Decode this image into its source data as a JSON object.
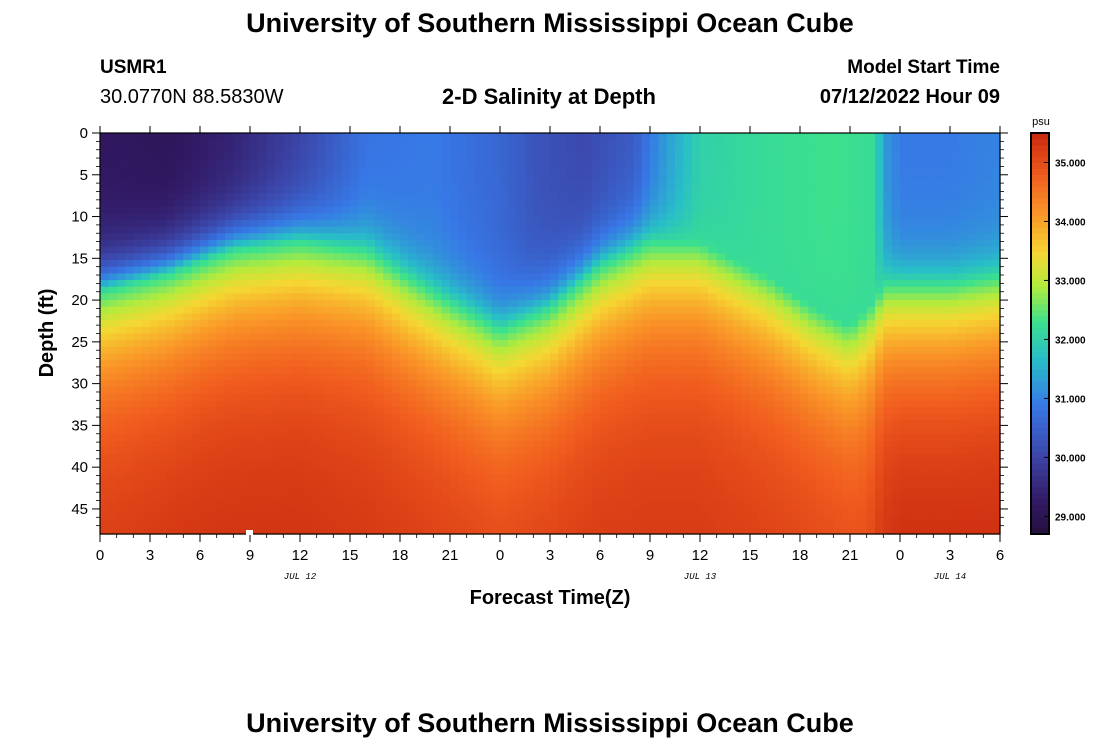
{
  "header": {
    "title": "University of Southern Mississippi Ocean Cube",
    "station": "USMR1",
    "coords": "30.0770N  88.5830W",
    "subtitle": "2-D Salinity at Depth",
    "model_start_label": "Model Start Time",
    "model_start_value": "07/12/2022 Hour 09"
  },
  "footer": {
    "title": "University of Southern Mississippi Ocean Cube"
  },
  "chart_data": {
    "type": "heatmap",
    "title": "2-D Salinity at Depth",
    "xlabel": "Forecast Time(Z)",
    "ylabel": "Depth (ft)",
    "x_unit": "hours",
    "xlim": [
      0,
      54
    ],
    "ylim": [
      0,
      48
    ],
    "x_ticks": [
      {
        "hour": 0,
        "label": "0"
      },
      {
        "hour": 3,
        "label": "3"
      },
      {
        "hour": 6,
        "label": "6"
      },
      {
        "hour": 9,
        "label": "9"
      },
      {
        "hour": 12,
        "label": "12"
      },
      {
        "hour": 15,
        "label": "15"
      },
      {
        "hour": 18,
        "label": "18"
      },
      {
        "hour": 21,
        "label": "21"
      },
      {
        "hour": 24,
        "label": "0"
      },
      {
        "hour": 27,
        "label": "3"
      },
      {
        "hour": 30,
        "label": "6"
      },
      {
        "hour": 33,
        "label": "9"
      },
      {
        "hour": 36,
        "label": "12"
      },
      {
        "hour": 39,
        "label": "15"
      },
      {
        "hour": 42,
        "label": "18"
      },
      {
        "hour": 45,
        "label": "21"
      },
      {
        "hour": 48,
        "label": "0"
      },
      {
        "hour": 51,
        "label": "3"
      },
      {
        "hour": 54,
        "label": "6"
      }
    ],
    "date_labels": [
      {
        "hour": 12,
        "label": "JUL 12"
      },
      {
        "hour": 36,
        "label": "JUL 13"
      },
      {
        "hour": 51,
        "label": "JUL 14"
      }
    ],
    "y_ticks": [
      0,
      5,
      10,
      15,
      20,
      25,
      30,
      35,
      40,
      45
    ],
    "colorbar": {
      "unit": "psu",
      "min": 28.7,
      "max": 35.5,
      "ticks": [
        "29.000",
        "30.000",
        "31.000",
        "32.000",
        "33.000",
        "34.000",
        "35.000"
      ]
    },
    "halocline_depth_ft": {
      "hours": [
        0,
        4,
        8,
        12,
        16,
        20,
        24,
        27,
        30,
        33,
        36,
        40,
        43,
        45,
        46.5,
        47,
        48,
        51,
        54
      ],
      "values": [
        19,
        17,
        14,
        13,
        14,
        19,
        23.5,
        21,
        16,
        13,
        13,
        17,
        21,
        23,
        20,
        18,
        18,
        18,
        17
      ]
    },
    "surface_salinity_psu": {
      "hours": [
        0,
        4,
        8,
        12,
        16,
        20,
        24,
        26,
        29,
        32,
        34,
        36,
        40,
        44,
        46.5,
        47,
        48,
        51,
        54
      ],
      "values": [
        29.2,
        29.1,
        29.4,
        30.0,
        30.8,
        30.9,
        30.6,
        30.3,
        30.1,
        30.4,
        31.3,
        32.0,
        32.2,
        32.3,
        32.2,
        31.3,
        30.9,
        30.9,
        31.0
      ]
    },
    "deep_salinity_psu": {
      "hours": [
        0,
        6,
        12,
        18,
        24,
        30,
        36,
        42,
        46,
        47,
        48,
        54
      ],
      "values": [
        35.3,
        35.4,
        35.4,
        35.3,
        35.2,
        35.3,
        35.3,
        35.2,
        35.1,
        35.4,
        35.5,
        35.5
      ]
    }
  }
}
